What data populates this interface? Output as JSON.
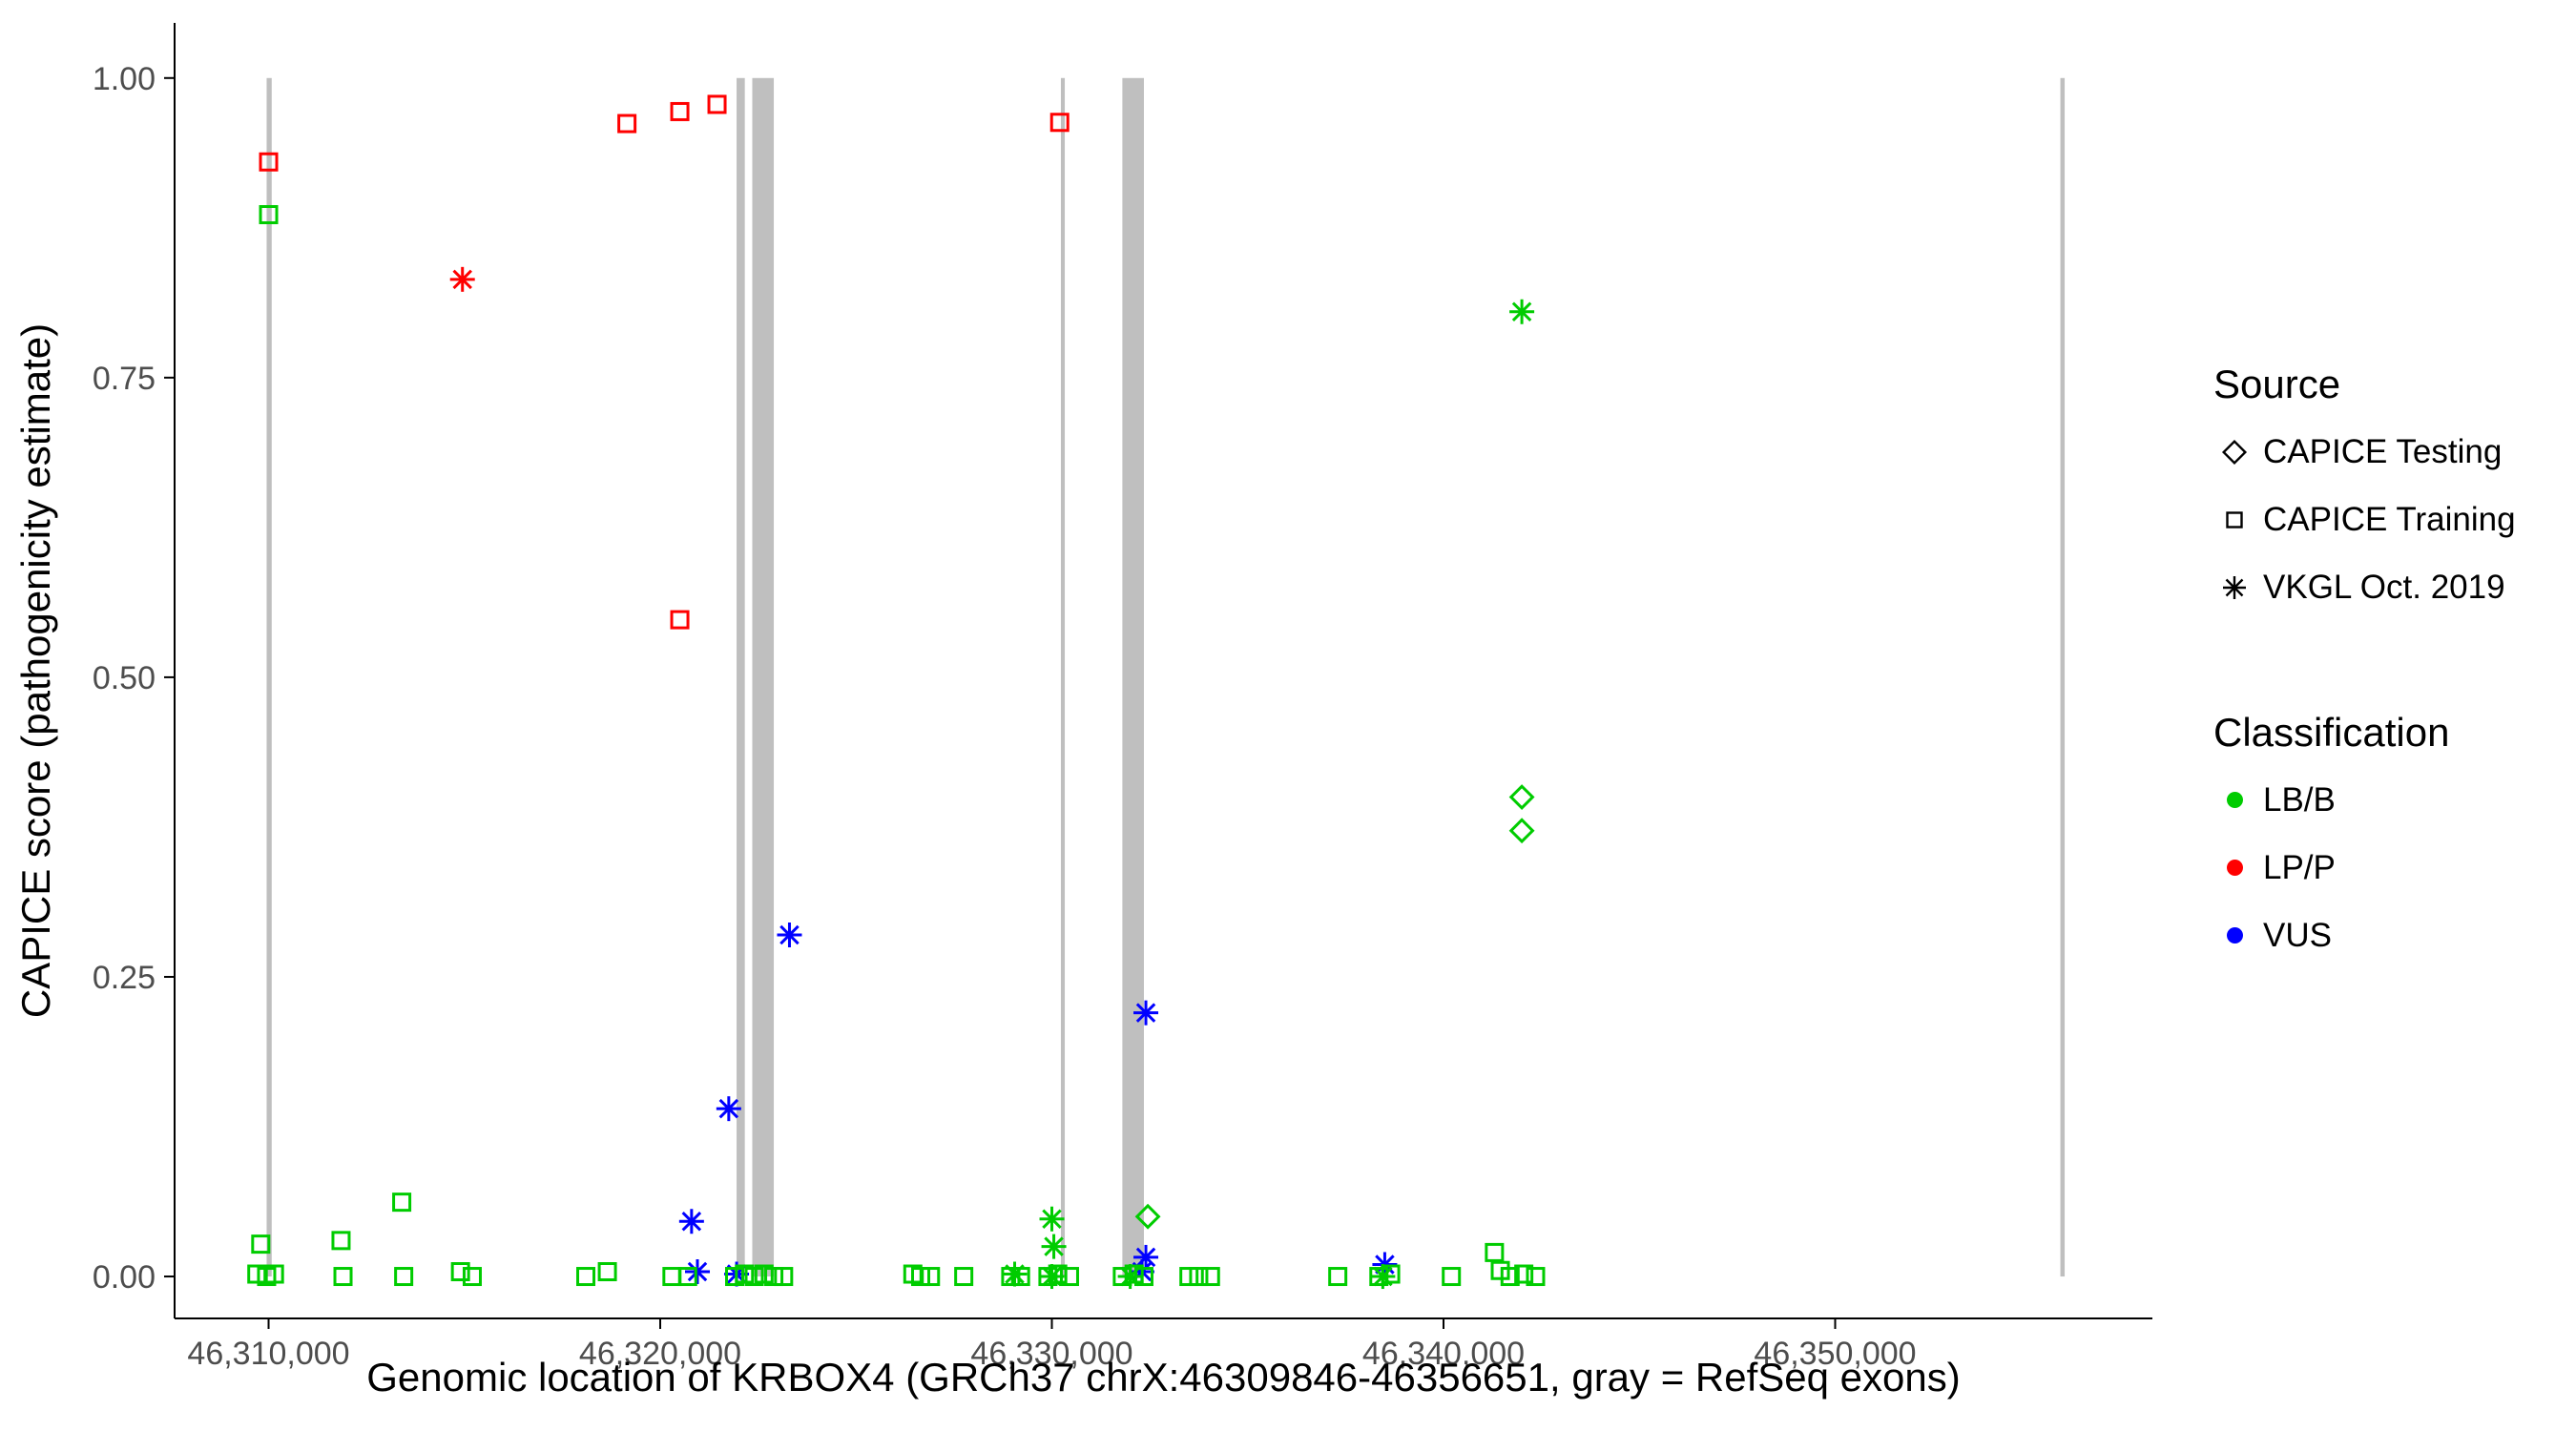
{
  "chart_data": {
    "type": "scatter",
    "title": "",
    "xlabel": "Genomic location of KRBOX4 (GRCh37 chrX:46309846-46356651, gray = RefSeq exons)",
    "ylabel": "CAPICE score (pathogenicity estimate)",
    "x_range": [
      46307600,
      46358100
    ],
    "y_range": [
      -0.035,
      1.046
    ],
    "x_ticks": {
      "values": [
        46310000,
        46320000,
        46330000,
        46340000,
        46350000
      ],
      "labels": [
        "46,310,000",
        "46,320,000",
        "46,330,000",
        "46,340,000",
        "46,350,000"
      ]
    },
    "y_ticks": {
      "values": [
        0.0,
        0.25,
        0.5,
        0.75,
        1.0
      ],
      "labels": [
        "0.00",
        "0.25",
        "0.50",
        "0.75",
        "1.00"
      ]
    },
    "grid": "off",
    "legend_position": "right",
    "exon_color": "#BFBFBF",
    "exons": [
      [
        46309950,
        46310080
      ],
      [
        46321950,
        46322160
      ],
      [
        46322350,
        46322900
      ],
      [
        46330230,
        46330330
      ],
      [
        46331800,
        46332350
      ],
      [
        46355750,
        46355860
      ]
    ],
    "legend": {
      "source": {
        "title": "Source",
        "items": [
          {
            "label": "CAPICE Testing",
            "shape": "diamond"
          },
          {
            "label": "CAPICE Training",
            "shape": "square"
          },
          {
            "label": "VKGL Oct. 2019",
            "shape": "asterisk"
          }
        ]
      },
      "classification": {
        "title": "Classification",
        "items": [
          {
            "label": "LB/B",
            "color": "#00CC00"
          },
          {
            "label": "LP/P",
            "color": "#FF0000"
          },
          {
            "label": "VUS",
            "color": "#0000FF"
          }
        ]
      }
    },
    "series": [
      {
        "name": "LP/P - CAPICE Training",
        "classification": "LP/P",
        "source": "CAPICE Training",
        "shape": "square",
        "color": "#FF0000",
        "points": [
          [
            46310000,
            0.93
          ],
          [
            46319150,
            0.962
          ],
          [
            46320500,
            0.972
          ],
          [
            46321450,
            0.978
          ],
          [
            46330200,
            0.963
          ],
          [
            46320500,
            0.548
          ]
        ]
      },
      {
        "name": "LP/P - VKGL Oct. 2019",
        "classification": "LP/P",
        "source": "VKGL Oct. 2019",
        "shape": "asterisk",
        "color": "#FF0000",
        "points": [
          [
            46314950,
            0.832
          ]
        ]
      },
      {
        "name": "VUS - VKGL Oct. 2019",
        "classification": "VUS",
        "source": "VKGL Oct. 2019",
        "shape": "asterisk",
        "color": "#0000FF",
        "points": [
          [
            46323300,
            0.285
          ],
          [
            46321750,
            0.14
          ],
          [
            46320800,
            0.046
          ],
          [
            46320950,
            0.004
          ],
          [
            46321950,
            0.002
          ],
          [
            46332400,
            0.22
          ],
          [
            46332400,
            0.016
          ],
          [
            46332300,
            0.004
          ],
          [
            46338500,
            0.01
          ]
        ]
      },
      {
        "name": "LB/B - CAPICE Testing",
        "classification": "LB/B",
        "source": "CAPICE Testing",
        "shape": "diamond",
        "color": "#00CC00",
        "points": [
          [
            46342000,
            0.4
          ],
          [
            46342000,
            0.372
          ],
          [
            46332450,
            0.05
          ]
        ]
      },
      {
        "name": "LB/B - VKGL Oct. 2019",
        "classification": "LB/B",
        "source": "VKGL Oct. 2019",
        "shape": "asterisk",
        "color": "#00CC00",
        "points": [
          [
            46342000,
            0.805
          ],
          [
            46330000,
            0.048
          ],
          [
            46330050,
            0.025
          ],
          [
            46329050,
            0.002
          ],
          [
            46330000,
            0.0
          ],
          [
            46332000,
            0.0
          ],
          [
            46338450,
            0.0
          ]
        ]
      },
      {
        "name": "LB/B - CAPICE Training",
        "classification": "LB/B",
        "source": "CAPICE Training",
        "shape": "square",
        "color": "#00CC00",
        "points": [
          [
            46310000,
            0.886
          ],
          [
            46309800,
            0.027
          ],
          [
            46309700,
            0.002
          ],
          [
            46309950,
            0.0
          ],
          [
            46310150,
            0.002
          ],
          [
            46311850,
            0.03
          ],
          [
            46311900,
            0.0
          ],
          [
            46313400,
            0.062
          ],
          [
            46313450,
            0.0
          ],
          [
            46314900,
            0.004
          ],
          [
            46315200,
            0.0
          ],
          [
            46318100,
            0.0
          ],
          [
            46318650,
            0.004
          ],
          [
            46320300,
            0.0
          ],
          [
            46320700,
            0.0
          ],
          [
            46321900,
            0.0
          ],
          [
            46322150,
            0.002
          ],
          [
            46322400,
            0.0
          ],
          [
            46322650,
            0.002
          ],
          [
            46322900,
            0.0
          ],
          [
            46323150,
            0.0
          ],
          [
            46326450,
            0.002
          ],
          [
            46326650,
            0.0
          ],
          [
            46326900,
            0.0
          ],
          [
            46327750,
            0.0
          ],
          [
            46328950,
            0.0
          ],
          [
            46329200,
            0.0
          ],
          [
            46329900,
            0.0
          ],
          [
            46330150,
            0.002
          ],
          [
            46330450,
            0.0
          ],
          [
            46331800,
            0.0
          ],
          [
            46332100,
            0.002
          ],
          [
            46332350,
            0.0
          ],
          [
            46333500,
            0.0
          ],
          [
            46333750,
            0.0
          ],
          [
            46334050,
            0.0
          ],
          [
            46337300,
            0.0
          ],
          [
            46338350,
            0.0
          ],
          [
            46338650,
            0.002
          ],
          [
            46340200,
            0.0
          ],
          [
            46341300,
            0.02
          ],
          [
            46341450,
            0.005
          ],
          [
            46341700,
            0.0
          ],
          [
            46342050,
            0.002
          ],
          [
            46342350,
            0.0
          ]
        ]
      }
    ]
  }
}
